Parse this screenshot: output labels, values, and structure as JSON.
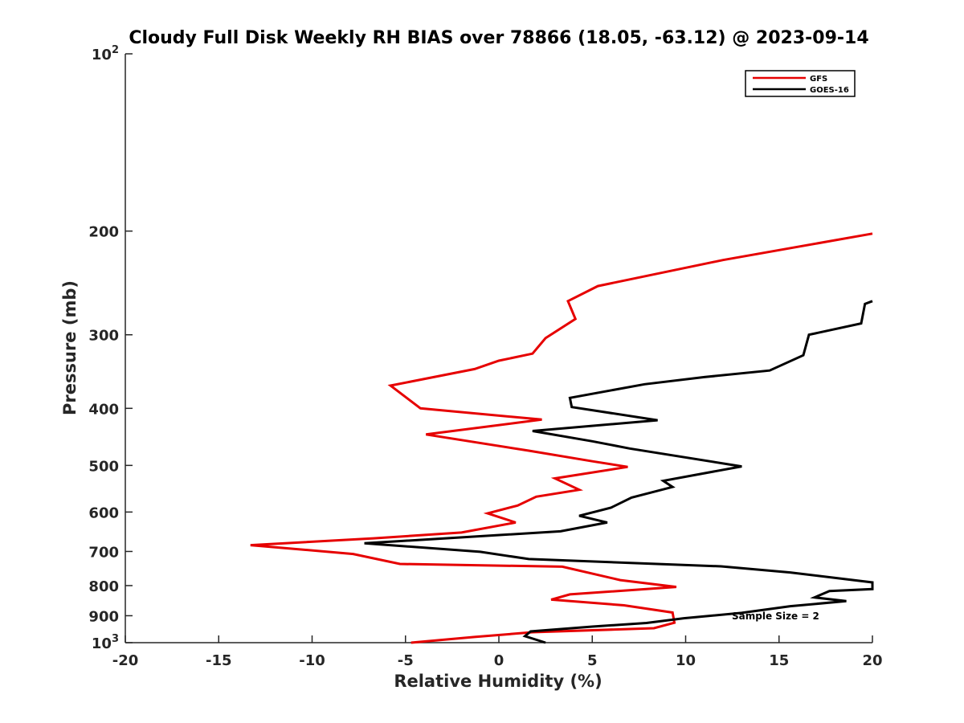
{
  "chart_data": {
    "type": "line",
    "title": "Cloudy Full Disk Weekly RH BIAS over 78866 (18.05, -63.12) @ 2023-09-14",
    "xlabel": "Relative Humidity (%)",
    "ylabel": "Pressure (mb)",
    "xlim": [
      -20,
      20
    ],
    "ylim": [
      100,
      1000
    ],
    "y_scale": "log",
    "y_reversed": true,
    "x_ticks": [
      "-20",
      "-15",
      "-10",
      "-5",
      "0",
      "5",
      "10",
      "15",
      "20"
    ],
    "y_ticks": [
      {
        "value": 100,
        "base": "10",
        "exp": "2"
      },
      {
        "value": 200,
        "label": "200"
      },
      {
        "value": 300,
        "label": "300"
      },
      {
        "value": 400,
        "label": "400"
      },
      {
        "value": 500,
        "label": "500"
      },
      {
        "value": 600,
        "label": "600"
      },
      {
        "value": 700,
        "label": "700"
      },
      {
        "value": 800,
        "label": "800"
      },
      {
        "value": 900,
        "label": "900"
      },
      {
        "value": 1000,
        "base": "10",
        "exp": "3"
      }
    ],
    "grid": false,
    "legend_position": "top-right",
    "annotation": "Sample Size = 2",
    "series": [
      {
        "name": "GFS",
        "color": "#e60000",
        "points": [
          [
            20.0,
            202
          ],
          [
            12.0,
            224
          ],
          [
            5.3,
            248
          ],
          [
            3.7,
            263
          ],
          [
            4.1,
            282
          ],
          [
            2.5,
            304
          ],
          [
            1.8,
            323
          ],
          [
            0.0,
            332
          ],
          [
            -1.3,
            343
          ],
          [
            -5.8,
            366
          ],
          [
            -4.2,
            400
          ],
          [
            2.3,
            418
          ],
          [
            -3.9,
            443
          ],
          [
            1.6,
            472
          ],
          [
            5.0,
            492
          ],
          [
            6.9,
            503
          ],
          [
            3.0,
            526
          ],
          [
            4.3,
            550
          ],
          [
            2.0,
            565
          ],
          [
            1.0,
            585
          ],
          [
            -0.6,
            603
          ],
          [
            0.9,
            625
          ],
          [
            -2.0,
            650
          ],
          [
            -6.7,
            665
          ],
          [
            -13.3,
            683
          ],
          [
            -7.8,
            707
          ],
          [
            -5.3,
            735
          ],
          [
            3.4,
            743
          ],
          [
            6.5,
            783
          ],
          [
            9.5,
            804
          ],
          [
            3.8,
            828
          ],
          [
            2.8,
            845
          ],
          [
            6.7,
            864
          ],
          [
            9.3,
            889
          ],
          [
            9.4,
            925
          ],
          [
            8.3,
            945
          ],
          [
            1.8,
            960
          ],
          [
            -1.3,
            978
          ],
          [
            -4.7,
            1000
          ]
        ]
      },
      {
        "name": "GOES-16",
        "color": "#000000",
        "points": [
          [
            20.0,
            263
          ],
          [
            19.6,
            266
          ],
          [
            19.4,
            287
          ],
          [
            16.6,
            300
          ],
          [
            16.3,
            325
          ],
          [
            14.5,
            345
          ],
          [
            11.0,
            354
          ],
          [
            7.8,
            364
          ],
          [
            3.8,
            384
          ],
          [
            3.9,
            398
          ],
          [
            8.5,
            419
          ],
          [
            1.8,
            437
          ],
          [
            5.0,
            455
          ],
          [
            7.0,
            468
          ],
          [
            13.0,
            502
          ],
          [
            8.8,
            531
          ],
          [
            9.3,
            544
          ],
          [
            7.1,
            567
          ],
          [
            6.0,
            590
          ],
          [
            4.3,
            609
          ],
          [
            5.8,
            625
          ],
          [
            3.3,
            647
          ],
          [
            -2.5,
            664
          ],
          [
            -7.2,
            678
          ],
          [
            -1.0,
            701
          ],
          [
            1.6,
            721
          ],
          [
            11.9,
            742
          ],
          [
            15.6,
            760
          ],
          [
            20.0,
            790
          ],
          [
            20.0,
            811
          ],
          [
            17.7,
            817
          ],
          [
            16.9,
            838
          ],
          [
            18.6,
            850
          ],
          [
            15.6,
            867
          ],
          [
            13.0,
            890
          ],
          [
            9.9,
            909
          ],
          [
            7.9,
            926
          ],
          [
            5.0,
            939
          ],
          [
            1.7,
            957
          ],
          [
            1.4,
            975
          ],
          [
            2.5,
            1000
          ]
        ]
      }
    ]
  }
}
